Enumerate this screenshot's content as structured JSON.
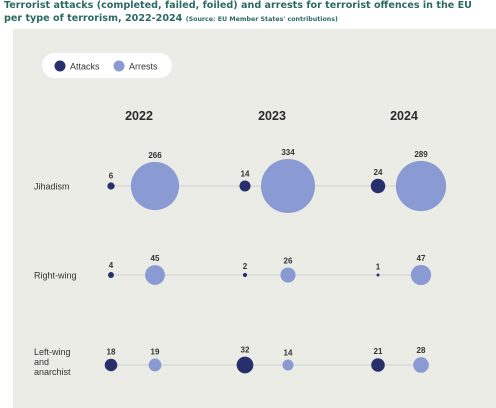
{
  "title": "Terrorist attacks (completed, failed, foiled) and arrests for terrorist offences in the EU per type of terrorism, 2022-2024",
  "source": "(Source: EU Member States' contributions)",
  "colors": {
    "attacks": "#27306b",
    "arrests": "#8a9ad3",
    "line": "#cfcfd4",
    "text": "#333333"
  },
  "chart_data": {
    "type": "scatter",
    "title": "Terrorist attacks (completed, failed, foiled) and arrests for terrorist offences in the EU per type of terrorism, 2022-2024",
    "legend": [
      "Attacks",
      "Arrests"
    ],
    "legend_position": "top-left",
    "years": [
      "2022",
      "2023",
      "2024"
    ],
    "categories": [
      "Jihadism",
      "Right-wing",
      "Left-wing and anarchist"
    ],
    "series": [
      {
        "name": "Attacks",
        "values": [
          [
            6,
            14,
            24
          ],
          [
            4,
            2,
            1
          ],
          [
            18,
            32,
            21
          ]
        ]
      },
      {
        "name": "Arrests",
        "values": [
          [
            266,
            334,
            289
          ],
          [
            45,
            26,
            47
          ],
          [
            19,
            14,
            28
          ]
        ]
      }
    ]
  }
}
